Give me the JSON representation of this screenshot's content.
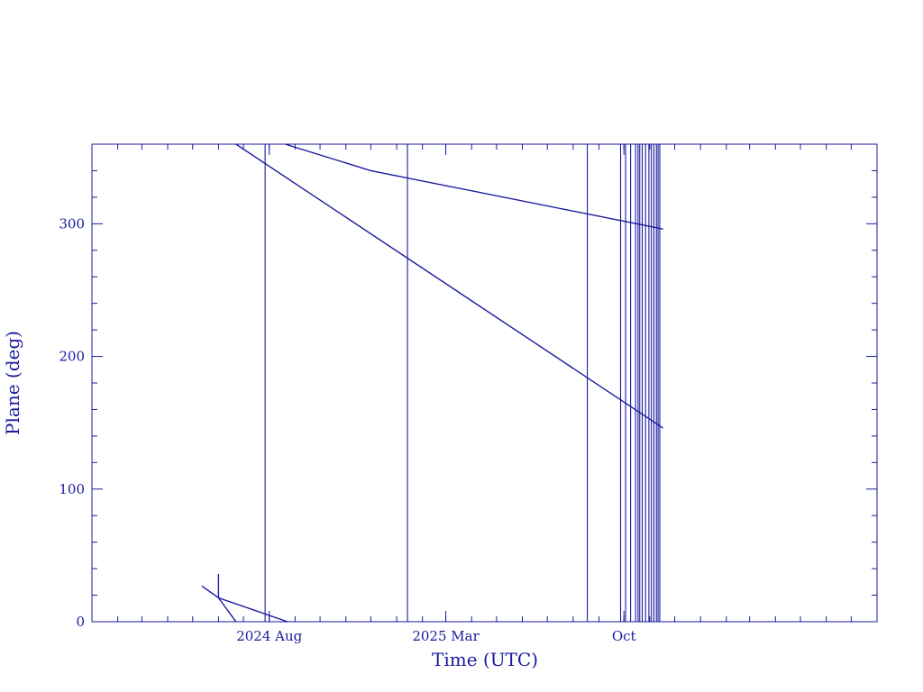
{
  "chart_data": {
    "type": "line",
    "title": "",
    "xlabel": "Time (UTC)",
    "ylabel": "Plane (deg)",
    "x_axis_kind": "date",
    "xlim": [
      "2024-01-01",
      "2026-08-01"
    ],
    "ylim": [
      0,
      360
    ],
    "x_ticks": [
      {
        "date": "2024-08-01",
        "label": "2024 Aug"
      },
      {
        "date": "2025-03-01",
        "label": "2025 Mar"
      },
      {
        "date": "2025-10-01",
        "label": "Oct"
      }
    ],
    "y_ticks": [
      {
        "value": 0,
        "label": "0"
      },
      {
        "value": 100,
        "label": "100"
      },
      {
        "value": 200,
        "label": "200"
      },
      {
        "value": 300,
        "label": "300"
      }
    ],
    "grid": false,
    "color": "#1a1aa0",
    "series": [
      {
        "points": [
          {
            "x": "2024-05-12",
            "y": 27
          },
          {
            "x": "2024-06-01",
            "y": 18
          },
          {
            "x": "2024-08-23",
            "y": 0
          }
        ]
      },
      {
        "points": [
          {
            "x": "2024-06-01",
            "y": 18
          },
          {
            "x": "2024-06-01",
            "y": 36
          }
        ]
      },
      {
        "points": [
          {
            "x": "2024-06-01",
            "y": 18
          },
          {
            "x": "2024-06-22",
            "y": 0
          }
        ]
      },
      {
        "points": [
          {
            "x": "2024-06-22",
            "y": 360
          },
          {
            "x": "2025-11-17",
            "y": 146
          }
        ]
      },
      {
        "points": [
          {
            "x": "2024-08-20",
            "y": 360
          },
          {
            "x": "2024-12-01",
            "y": 340
          },
          {
            "x": "2025-11-17",
            "y": 296
          }
        ]
      }
    ],
    "vertical_lines": [
      "2024-07-27",
      "2025-01-14",
      "2025-08-18",
      "2025-09-27",
      "2025-10-03",
      "2025-10-09",
      "2025-10-15",
      "2025-10-18",
      "2025-10-20",
      "2025-10-23",
      "2025-10-27",
      "2025-10-31",
      "2025-11-03",
      "2025-11-06",
      "2025-11-09",
      "2025-11-11",
      "2025-11-13"
    ]
  }
}
